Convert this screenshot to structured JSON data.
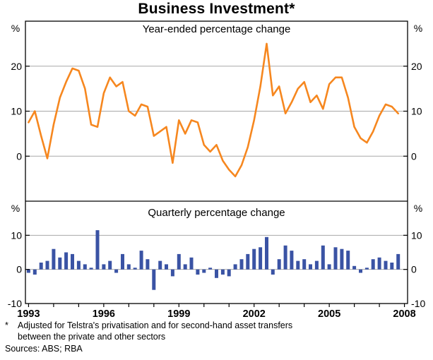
{
  "title": "Business Investment*",
  "panels": {
    "top": {
      "caption": "Year-ended percentage change",
      "unit": "%"
    },
    "bottom": {
      "caption": "Quarterly percentage change",
      "unit": "%"
    }
  },
  "x_axis": {
    "labels": [
      "1993",
      "1996",
      "1999",
      "2002",
      "2005",
      "2008"
    ],
    "tick_year_start": 1993,
    "tick_year_end": 2008
  },
  "footnote": {
    "marker": "*",
    "lines": [
      "Adjusted for Telstra's privatisation and for second-hand asset transfers",
      "between the private and other sectors"
    ],
    "sources": "Sources: ABS; RBA"
  },
  "colors": {
    "line": "#F6871F",
    "bars": "#3A53A4",
    "grid": "#A8A8A8",
    "axis": "#000000",
    "background": "#FFFFFF"
  },
  "chart_data": [
    {
      "type": "line",
      "title": "Year-ended percentage change",
      "frequency": "quarterly",
      "x_start": 1993.0,
      "x_step": 0.25,
      "ylabel": "%",
      "ylim": [
        -10,
        30
      ],
      "yticks": [
        0,
        10,
        20
      ],
      "grid": true,
      "series": [
        {
          "name": "Business investment, year-ended percentage change",
          "values": [
            7.5,
            10,
            4.5,
            -0.5,
            7,
            13,
            16.5,
            19.5,
            19,
            15,
            7,
            6.5,
            14,
            17.5,
            15.5,
            16.5,
            10,
            9,
            11.5,
            11,
            4.5,
            5.5,
            6.5,
            -1.5,
            8,
            5,
            8,
            7.5,
            2.5,
            1,
            2.5,
            -1,
            -3,
            -4.5,
            -2,
            2,
            8,
            15.5,
            25,
            13.5,
            15.5,
            9.5,
            12,
            15,
            16.5,
            12,
            13.5,
            10.5,
            16,
            17.5,
            17.5,
            13,
            6.5,
            4,
            3,
            5.5,
            9,
            11.5,
            11,
            9.5
          ]
        }
      ]
    },
    {
      "type": "bar",
      "title": "Quarterly percentage change",
      "frequency": "quarterly",
      "x_start": 1993.0,
      "x_step": 0.25,
      "ylabel": "%",
      "ylim": [
        -10,
        20
      ],
      "yticks": [
        -10,
        0,
        10
      ],
      "grid": true,
      "series": [
        {
          "name": "Business investment, quarterly percentage change",
          "values": [
            -1,
            -1.5,
            2,
            2.5,
            6,
            3.5,
            5,
            4.5,
            2.5,
            1.5,
            0.5,
            11.5,
            1.5,
            2.5,
            -1,
            4.5,
            1.5,
            0.5,
            5.5,
            3,
            -6,
            2.5,
            1.5,
            -2,
            4.5,
            1.5,
            3.5,
            -1.5,
            -1,
            0.5,
            -2.5,
            -1.5,
            -2,
            1.5,
            3,
            4.5,
            6,
            6.5,
            9.5,
            -1.5,
            3,
            7,
            5.5,
            2.5,
            3,
            1.5,
            2.5,
            7,
            1.5,
            6.5,
            6,
            5.5,
            1,
            -1,
            0.5,
            3,
            3.5,
            2.5,
            2,
            4.5
          ]
        }
      ]
    }
  ]
}
